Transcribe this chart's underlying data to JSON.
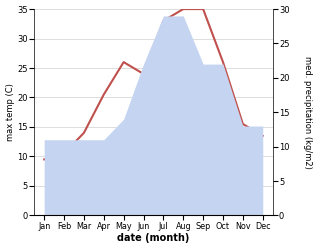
{
  "months": [
    "Jan",
    "Feb",
    "Mar",
    "Apr",
    "May",
    "Jun",
    "Jul",
    "Aug",
    "Sep",
    "Oct",
    "Nov",
    "Dec"
  ],
  "temp": [
    9.5,
    10.5,
    14.0,
    20.5,
    26.0,
    24.0,
    33.0,
    35.0,
    35.0,
    26.0,
    15.5,
    13.5
  ],
  "precip": [
    11,
    11,
    11,
    11,
    14,
    22,
    29,
    29,
    22,
    22,
    13,
    13
  ],
  "temp_color": "#c0504d",
  "precip_fill_color": "#c5d4f0",
  "temp_ylim": [
    0,
    35
  ],
  "precip_ylim": [
    0,
    30
  ],
  "xlabel": "date (month)",
  "ylabel_left": "max temp (C)",
  "ylabel_right": "med. precipitation (kg/m2)",
  "bg_color": "#ffffff",
  "grid_color": "#d0d0d0"
}
